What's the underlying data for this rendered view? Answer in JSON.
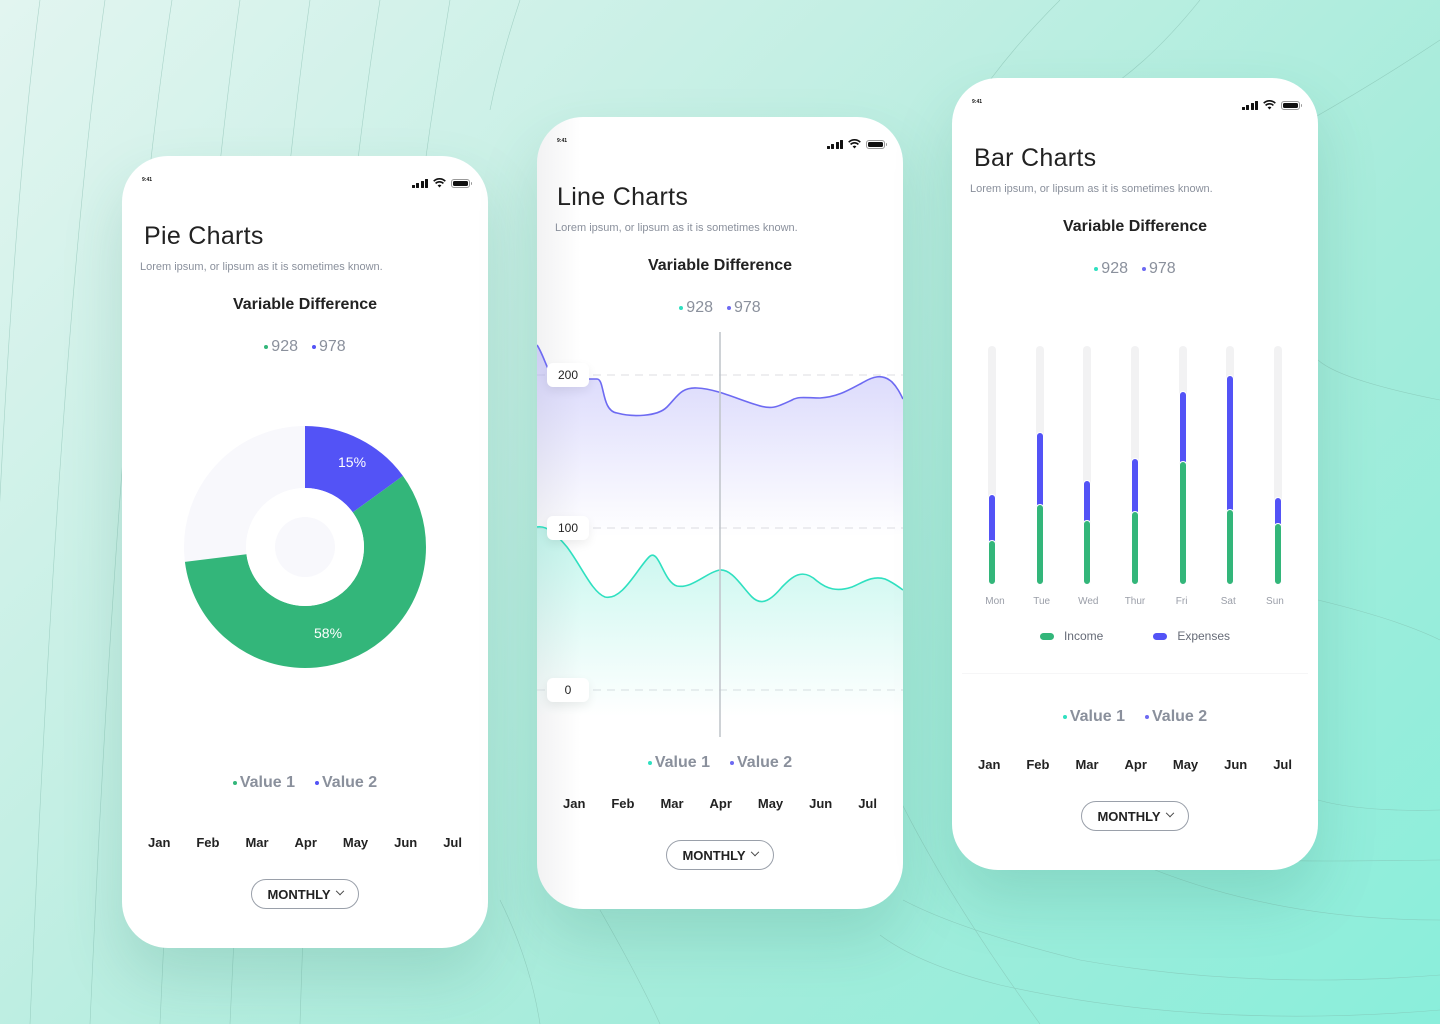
{
  "colors": {
    "green": "#33b67a",
    "blue": "#5353f6",
    "teal": "#2fe0c0",
    "purple": "#6d6af2",
    "gray_text": "#8a909c",
    "track": "#f2f2f3"
  },
  "status_bar": {
    "time": "9:41"
  },
  "common": {
    "subtitle": "Lorem ipsum, or lipsum as it is sometimes known.",
    "chart_heading": "Variable Difference",
    "stat_1": "928",
    "stat_2": "978",
    "legend_value_1": "Value 1",
    "legend_value_2": "Value 2",
    "months": [
      "Jan",
      "Feb",
      "Mar",
      "Apr",
      "May",
      "Jun",
      "Jul"
    ],
    "period_button": "MONTHLY"
  },
  "phones": {
    "pie": {
      "title": "Pie Charts"
    },
    "line": {
      "title": "Line Charts"
    },
    "bar": {
      "title": "Bar Charts"
    }
  },
  "chart_data": [
    {
      "type": "pie",
      "title": "Variable Difference",
      "subtype": "donut",
      "categories": [
        "Value 2",
        "Value 1",
        "Remaining"
      ],
      "values": [
        15,
        58,
        27
      ],
      "labels": [
        "15%",
        "58%",
        ""
      ],
      "colors": [
        "#5353f6",
        "#33b67a",
        "#f8f8fc"
      ],
      "legend": [
        "Value 1",
        "Value 2"
      ]
    },
    {
      "type": "area",
      "title": "Variable Difference",
      "x": [
        "Jan",
        "Feb",
        "Mar",
        "Apr",
        "May",
        "Jun",
        "Jul"
      ],
      "yticks": [
        0,
        100,
        200
      ],
      "ylim": [
        0,
        210
      ],
      "grid": true,
      "series": [
        {
          "name": "Value 2",
          "color": "#6d6af2",
          "values": [
            208,
            195,
            186,
            193,
            180,
            195,
            185,
            200,
            183,
            193,
            190
          ]
        },
        {
          "name": "Value 1",
          "color": "#2fe0c0",
          "values": [
            100,
            85,
            56,
            88,
            65,
            78,
            54,
            75,
            66,
            72,
            63
          ]
        }
      ],
      "cursor_at": "Apr",
      "legend": [
        "Value 1",
        "Value 2"
      ]
    },
    {
      "type": "bar",
      "title": "Variable Difference",
      "stacked": true,
      "categories": [
        "Mon",
        "Tue",
        "Wed",
        "Thur",
        "Fri",
        "Sat",
        "Sun"
      ],
      "ylim": [
        0,
        100
      ],
      "series": [
        {
          "name": "Income",
          "color": "#33b67a",
          "values": [
            19,
            34,
            27,
            31,
            52,
            32,
            26
          ]
        },
        {
          "name": "Expenses",
          "color": "#5353f6",
          "values": [
            19,
            30,
            17,
            22,
            29,
            56,
            11
          ]
        }
      ],
      "legend": [
        "Income",
        "Expenses"
      ]
    }
  ]
}
